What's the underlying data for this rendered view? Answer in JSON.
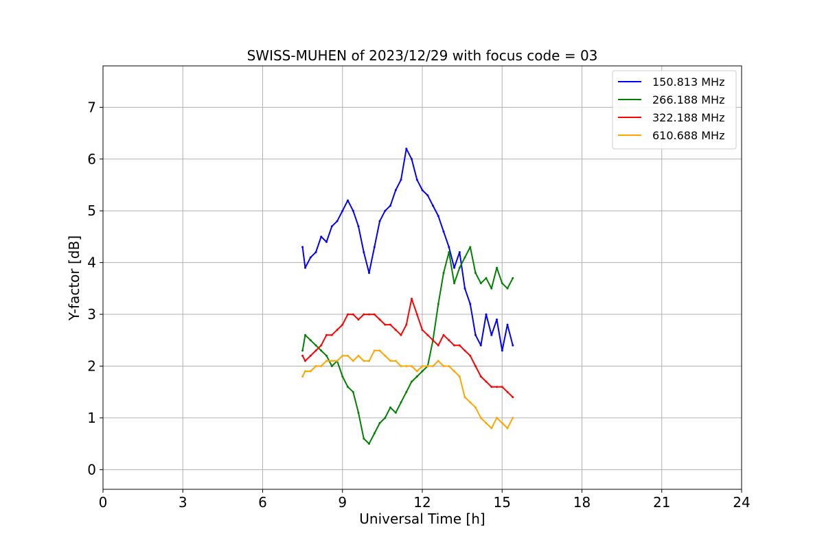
{
  "chart_data": {
    "type": "line",
    "title": "SWISS-MUHEN of 2023/12/29 with focus code = 03",
    "xlabel": "Universal Time [h]",
    "ylabel": "Y-factor [dB]",
    "xlim": [
      0,
      24
    ],
    "ylim": [
      -0.38,
      7.8
    ],
    "xticks": [
      0,
      3,
      6,
      9,
      12,
      15,
      18,
      21,
      24
    ],
    "yticks": [
      0,
      1,
      2,
      3,
      4,
      5,
      6,
      7
    ],
    "grid": true,
    "legend_position": "top-right",
    "series": [
      {
        "name": "150.813 MHz",
        "color": "#0000ff",
        "x": [
          7.5,
          7.6,
          7.8,
          8.0,
          8.2,
          8.4,
          8.6,
          8.8,
          9.0,
          9.2,
          9.4,
          9.6,
          9.8,
          10.0,
          10.2,
          10.4,
          10.6,
          10.8,
          11.0,
          11.2,
          11.4,
          11.6,
          11.8,
          12.0,
          12.2,
          12.4,
          12.6,
          12.8,
          13.0,
          13.2,
          13.4,
          13.6,
          13.8,
          14.0,
          14.2,
          14.4,
          14.6,
          14.8,
          15.0,
          15.2,
          15.4
        ],
        "y": [
          4.3,
          3.9,
          4.1,
          4.2,
          4.5,
          4.4,
          4.7,
          4.8,
          5.0,
          5.2,
          5.0,
          4.7,
          4.2,
          3.8,
          4.3,
          4.8,
          5.0,
          5.1,
          5.4,
          5.6,
          6.2,
          6.0,
          5.6,
          5.4,
          5.3,
          5.1,
          4.9,
          4.6,
          4.3,
          3.9,
          4.2,
          3.5,
          3.2,
          2.6,
          2.4,
          3.0,
          2.6,
          2.9,
          2.3,
          2.8,
          2.4
        ]
      },
      {
        "name": "266.188 MHz",
        "color": "#008000",
        "x": [
          7.5,
          7.6,
          7.8,
          8.0,
          8.2,
          8.4,
          8.6,
          8.8,
          9.0,
          9.2,
          9.4,
          9.6,
          9.8,
          10.0,
          10.2,
          10.4,
          10.6,
          10.8,
          11.0,
          11.2,
          11.4,
          11.6,
          11.8,
          12.0,
          12.2,
          12.4,
          12.6,
          12.8,
          13.0,
          13.2,
          13.4,
          13.6,
          13.8,
          14.0,
          14.2,
          14.4,
          14.6,
          14.8,
          15.0,
          15.2,
          15.4
        ],
        "y": [
          2.3,
          2.6,
          2.5,
          2.4,
          2.3,
          2.2,
          2.0,
          2.1,
          1.8,
          1.6,
          1.5,
          1.1,
          0.6,
          0.5,
          0.7,
          0.9,
          1.0,
          1.2,
          1.1,
          1.3,
          1.5,
          1.7,
          1.8,
          1.9,
          2.0,
          2.5,
          3.2,
          3.8,
          4.2,
          3.6,
          3.9,
          4.1,
          4.3,
          3.8,
          3.6,
          3.7,
          3.5,
          3.9,
          3.6,
          3.5,
          3.7
        ]
      },
      {
        "name": "322.188 MHz",
        "color": "#ff0000",
        "x": [
          7.5,
          7.6,
          7.8,
          8.0,
          8.2,
          8.4,
          8.6,
          8.8,
          9.0,
          9.2,
          9.4,
          9.6,
          9.8,
          10.0,
          10.2,
          10.4,
          10.6,
          10.8,
          11.0,
          11.2,
          11.4,
          11.6,
          11.8,
          12.0,
          12.2,
          12.4,
          12.6,
          12.8,
          13.0,
          13.2,
          13.4,
          13.6,
          13.8,
          14.0,
          14.2,
          14.4,
          14.6,
          14.8,
          15.0,
          15.2,
          15.4
        ],
        "y": [
          2.2,
          2.1,
          2.2,
          2.3,
          2.4,
          2.6,
          2.6,
          2.7,
          2.8,
          3.0,
          3.0,
          2.9,
          3.0,
          3.0,
          3.0,
          2.9,
          2.8,
          2.8,
          2.7,
          2.6,
          2.8,
          3.3,
          3.0,
          2.7,
          2.6,
          2.5,
          2.4,
          2.6,
          2.5,
          2.4,
          2.4,
          2.3,
          2.2,
          2.0,
          1.8,
          1.7,
          1.6,
          1.6,
          1.6,
          1.5,
          1.4
        ]
      },
      {
        "name": "610.688 MHz",
        "color": "#ffa500",
        "x": [
          7.5,
          7.6,
          7.8,
          8.0,
          8.2,
          8.4,
          8.6,
          8.8,
          9.0,
          9.2,
          9.4,
          9.6,
          9.8,
          10.0,
          10.2,
          10.4,
          10.6,
          10.8,
          11.0,
          11.2,
          11.4,
          11.6,
          11.8,
          12.0,
          12.2,
          12.4,
          12.6,
          12.8,
          13.0,
          13.2,
          13.4,
          13.6,
          13.8,
          14.0,
          14.2,
          14.4,
          14.6,
          14.8,
          15.0,
          15.2,
          15.4
        ],
        "y": [
          1.8,
          1.9,
          1.9,
          2.0,
          2.0,
          2.1,
          2.1,
          2.1,
          2.2,
          2.2,
          2.1,
          2.2,
          2.1,
          2.1,
          2.3,
          2.3,
          2.2,
          2.1,
          2.1,
          2.0,
          2.0,
          2.0,
          1.9,
          2.0,
          2.0,
          2.0,
          2.1,
          2.0,
          2.0,
          1.9,
          1.8,
          1.4,
          1.3,
          1.2,
          1.0,
          0.9,
          0.8,
          1.0,
          0.9,
          0.8,
          1.0
        ]
      }
    ]
  }
}
